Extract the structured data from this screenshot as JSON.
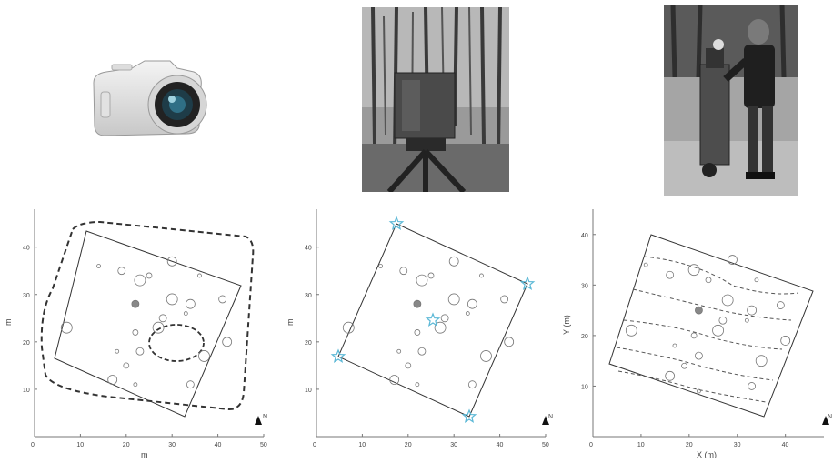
{
  "figure": {
    "photos": [
      {
        "icon": "mirrorless-camera-icon"
      },
      {
        "icon": "terrestrial-laser-scanner-tripod-photo"
      },
      {
        "icon": "mobile-laser-scanner-backpack-cart-photo"
      }
    ],
    "north_label": "N",
    "panels": [
      {
        "ylabel": "m",
        "xlabel": "m",
        "xticks": [
          "0",
          "10",
          "20",
          "30",
          "40",
          "50"
        ],
        "yticks": [
          "10",
          "20",
          "30",
          "40"
        ]
      },
      {
        "ylabel": "m",
        "xlabel": "",
        "xticks": [
          "0",
          "10",
          "20",
          "30",
          "40",
          "50"
        ],
        "yticks": [
          "10",
          "20",
          "30",
          "40"
        ]
      },
      {
        "ylabel": "Y (m)",
        "xlabel": "X (m)",
        "xticks": [
          "0",
          "10",
          "20",
          "30",
          "40"
        ],
        "yticks": [
          "10",
          "20",
          "30",
          "40"
        ]
      }
    ]
  },
  "chart_data": [
    {
      "type": "scatter",
      "title": "",
      "xlabel": "m",
      "ylabel": "m",
      "xlim": [
        0,
        50
      ],
      "ylim": [
        0,
        48
      ],
      "series": [
        {
          "values": [
            [
              14,
              36
            ],
            [
              19,
              35
            ],
            [
              23,
              33
            ],
            [
              25,
              34
            ],
            [
              30,
              37
            ],
            [
              36,
              34
            ],
            [
              41,
              29
            ],
            [
              30,
              29
            ],
            [
              22,
              28
            ],
            [
              34,
              28
            ],
            [
              33,
              26
            ],
            [
              28,
              25
            ],
            [
              27,
              23
            ],
            [
              22,
              22
            ],
            [
              42,
              20
            ],
            [
              18,
              18
            ],
            [
              23,
              18
            ],
            [
              37,
              17
            ],
            [
              20,
              15
            ],
            [
              17,
              12
            ],
            [
              22,
              11
            ],
            [
              34,
              11
            ],
            [
              7,
              23
            ]
          ]
        }
      ]
    },
    {
      "type": "scatter",
      "title": "",
      "xlabel": "",
      "ylabel": "m",
      "xlim": [
        0,
        50
      ],
      "ylim": [
        0,
        48
      ],
      "series": [
        {
          "values": [
            [
              14,
              36
            ],
            [
              19,
              35
            ],
            [
              23,
              33
            ],
            [
              25,
              34
            ],
            [
              30,
              37
            ],
            [
              36,
              34
            ],
            [
              41,
              29
            ],
            [
              30,
              29
            ],
            [
              22,
              28
            ],
            [
              34,
              28
            ],
            [
              33,
              26
            ],
            [
              28,
              25
            ],
            [
              27,
              23
            ],
            [
              22,
              22
            ],
            [
              42,
              20
            ],
            [
              18,
              18
            ],
            [
              23,
              18
            ],
            [
              37,
              17
            ],
            [
              20,
              15
            ],
            [
              17,
              12
            ],
            [
              22,
              11
            ],
            [
              34,
              11
            ],
            [
              7,
              23
            ]
          ]
        }
      ]
    },
    {
      "type": "scatter",
      "title": "",
      "xlabel": "X (m)",
      "ylabel": "Y (m)",
      "xlim": [
        0,
        48
      ],
      "ylim": [
        0,
        45
      ],
      "series": [
        {
          "values": [
            [
              11,
              34
            ],
            [
              16,
              32
            ],
            [
              21,
              33
            ],
            [
              24,
              31
            ],
            [
              29,
              35
            ],
            [
              34,
              31
            ],
            [
              39,
              26
            ],
            [
              28,
              27
            ],
            [
              22,
              25
            ],
            [
              33,
              25
            ],
            [
              32,
              23
            ],
            [
              27,
              23
            ],
            [
              26,
              21
            ],
            [
              21,
              20
            ],
            [
              40,
              19
            ],
            [
              17,
              18
            ],
            [
              22,
              16
            ],
            [
              35,
              15
            ],
            [
              19,
              14
            ],
            [
              16,
              12
            ],
            [
              22,
              9
            ],
            [
              33,
              10
            ],
            [
              8,
              21
            ]
          ]
        }
      ]
    }
  ]
}
